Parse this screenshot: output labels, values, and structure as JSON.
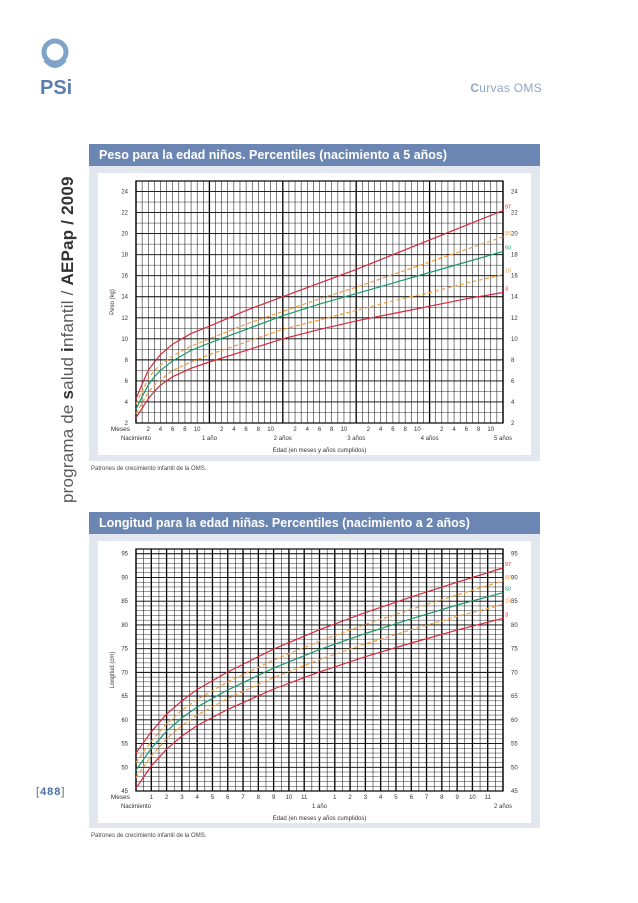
{
  "header": {
    "section_cap": "C",
    "section_rest": "urvas OMS"
  },
  "sidebar_title": {
    "part1": "programa de ",
    "part2": "s",
    "part3": "alud ",
    "part4": "i",
    "part5": "nfantil / ",
    "part6": "AEPap / 2009"
  },
  "page_number": "488",
  "source_note_1": "Patrones de crecimiento infantil de la OMS.",
  "source_note_2": "Patrones de crecimiento infantil de la OMS.",
  "colors": {
    "p97": "#d9273c",
    "p85": "#f39c3a",
    "p50": "#1a9a6a",
    "p15": "#f39c3a",
    "p3": "#d9273c",
    "panel_header": "#6c86b3",
    "panel_bg": "#e1e6ef"
  },
  "chart_data": [
    {
      "type": "line",
      "title": "Peso para la edad niños. Percentiles (nacimiento a 5 años)",
      "ylabel": "Peso (kg)",
      "xlabel": "Edad (en meses y años cumplidos)",
      "xlim": [
        0,
        60
      ],
      "ylim": [
        2,
        25
      ],
      "yticks": [
        2,
        4,
        6,
        8,
        10,
        12,
        14,
        16,
        18,
        20,
        22,
        24
      ],
      "meses_label": "Meses",
      "month_ticks": [
        "2",
        "4",
        "6",
        "8",
        "10",
        "2",
        "4",
        "6",
        "8",
        "10",
        "2",
        "4",
        "6",
        "8",
        "10",
        "2",
        "4",
        "6",
        "8",
        "10",
        "2",
        "4",
        "6",
        "8",
        "10"
      ],
      "year_labels": [
        "Nacimiento",
        "1 año",
        "2 años",
        "3 años",
        "4 años",
        "5 años"
      ],
      "series": [
        {
          "name": "97",
          "style": "solid",
          "x": [
            0,
            1,
            2,
            3,
            4,
            6,
            9,
            12,
            18,
            24,
            30,
            36,
            42,
            48,
            54,
            60
          ],
          "y": [
            4.3,
            5.7,
            7.0,
            7.8,
            8.5,
            9.5,
            10.5,
            11.2,
            12.7,
            14.0,
            15.3,
            16.6,
            18.0,
            19.4,
            20.8,
            22.2
          ]
        },
        {
          "name": "85",
          "style": "dashed",
          "x": [
            0,
            1,
            2,
            3,
            4,
            6,
            9,
            12,
            18,
            24,
            30,
            36,
            42,
            48,
            54,
            60
          ],
          "y": [
            3.8,
            5.0,
            6.2,
            7.0,
            7.5,
            8.4,
            9.3,
            10.0,
            11.4,
            12.6,
            13.8,
            14.9,
            16.1,
            17.3,
            18.5,
            19.7
          ]
        },
        {
          "name": "50",
          "style": "solid",
          "x": [
            0,
            1,
            2,
            3,
            4,
            6,
            9,
            12,
            18,
            24,
            30,
            36,
            42,
            48,
            54,
            60
          ],
          "y": [
            3.3,
            4.5,
            5.6,
            6.4,
            7.0,
            7.9,
            8.9,
            9.6,
            10.9,
            12.2,
            13.3,
            14.3,
            15.3,
            16.3,
            17.3,
            18.3
          ]
        },
        {
          "name": "15",
          "style": "dashed",
          "x": [
            0,
            1,
            2,
            3,
            4,
            6,
            9,
            12,
            18,
            24,
            30,
            36,
            42,
            48,
            54,
            60
          ],
          "y": [
            2.9,
            3.9,
            4.9,
            5.6,
            6.1,
            7.0,
            7.8,
            8.5,
            9.7,
            10.9,
            11.8,
            12.7,
            13.6,
            14.4,
            15.3,
            16.1
          ]
        },
        {
          "name": "3",
          "style": "solid",
          "x": [
            0,
            1,
            2,
            3,
            4,
            6,
            9,
            12,
            18,
            24,
            30,
            36,
            42,
            48,
            54,
            60
          ],
          "y": [
            2.5,
            3.4,
            4.3,
            5.0,
            5.6,
            6.4,
            7.2,
            7.8,
            8.9,
            10.0,
            10.9,
            11.7,
            12.4,
            13.1,
            13.8,
            14.4
          ]
        }
      ]
    },
    {
      "type": "line",
      "title": "Longitud para la edad niñas. Percentiles (nacimiento a 2 años)",
      "ylabel": "Longitud (cm)",
      "xlabel": "Edad (en meses y años cumplidos)",
      "xlim": [
        0,
        24
      ],
      "ylim": [
        45,
        96
      ],
      "yticks": [
        45,
        50,
        55,
        60,
        65,
        70,
        75,
        80,
        85,
        90,
        95
      ],
      "meses_label": "Meses",
      "month_ticks": [
        "1",
        "2",
        "3",
        "4",
        "5",
        "6",
        "7",
        "8",
        "9",
        "10",
        "11",
        "1",
        "2",
        "3",
        "4",
        "5",
        "6",
        "7",
        "8",
        "9",
        "10",
        "11"
      ],
      "year_labels": [
        "Nacimiento",
        "1 año",
        "2 años"
      ],
      "series": [
        {
          "name": "97",
          "style": "solid",
          "x": [
            0,
            1,
            2,
            3,
            4,
            6,
            9,
            12,
            15,
            18,
            21,
            24
          ],
          "y": [
            53.0,
            57.5,
            61.2,
            64.0,
            66.4,
            70.1,
            74.9,
            79.0,
            82.6,
            85.9,
            89.0,
            92.0
          ]
        },
        {
          "name": "85",
          "style": "dashed",
          "x": [
            0,
            1,
            2,
            3,
            4,
            6,
            9,
            12,
            15,
            18,
            21,
            24
          ],
          "y": [
            51.0,
            55.5,
            59.2,
            62.0,
            64.3,
            68.0,
            72.6,
            76.6,
            80.1,
            83.3,
            86.3,
            89.3
          ]
        },
        {
          "name": "50",
          "style": "solid",
          "x": [
            0,
            1,
            2,
            3,
            4,
            6,
            9,
            12,
            15,
            18,
            21,
            24
          ],
          "y": [
            49.4,
            54.0,
            57.6,
            60.4,
            62.7,
            66.3,
            70.9,
            74.8,
            78.2,
            81.3,
            84.2,
            86.8
          ]
        },
        {
          "name": "15",
          "style": "dashed",
          "x": [
            0,
            1,
            2,
            3,
            4,
            6,
            9,
            12,
            15,
            18,
            21,
            24
          ],
          "y": [
            47.8,
            52.4,
            56.0,
            58.8,
            61.0,
            64.5,
            68.9,
            72.7,
            76.0,
            79.0,
            81.8,
            84.3
          ]
        },
        {
          "name": "3",
          "style": "solid",
          "x": [
            0,
            1,
            2,
            3,
            4,
            6,
            9,
            12,
            15,
            18,
            21,
            24
          ],
          "y": [
            45.6,
            50.3,
            53.8,
            56.6,
            58.8,
            62.2,
            66.5,
            70.1,
            73.3,
            76.2,
            78.9,
            81.4
          ]
        }
      ]
    }
  ]
}
